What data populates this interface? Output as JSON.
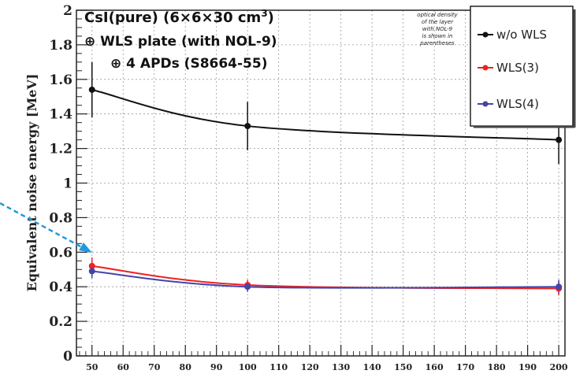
{
  "chart_data": {
    "type": "line",
    "ylabel": "Equivalent noise energy [MeV]",
    "xlabel": "",
    "ylim": [
      0,
      2
    ],
    "xlim": [
      45,
      202
    ],
    "y_ticks": [
      "0",
      "0.2",
      "0.4",
      "0.6",
      "0.8",
      "1",
      "1.2",
      "1.4",
      "1.6",
      "1.8",
      "2"
    ],
    "x_tick_values": [
      50,
      60,
      70,
      80,
      90,
      100,
      110,
      120,
      130,
      140,
      150,
      160,
      170,
      180,
      190,
      200
    ],
    "x_ticks": [
      "50",
      "60",
      "70",
      "80",
      "90",
      "100",
      "110",
      "120",
      "130",
      "140",
      "150",
      "160",
      "170",
      "180",
      "190",
      "200"
    ],
    "annotation_lines": [
      "CsI(pure) (6×6×30 cm",
      "⊕ WLS plate (with NOL-9)",
      "⊕ 4 APDs (S8664-55)"
    ],
    "annotation_superscript": "3",
    "note_lines": [
      "optical density",
      "of the layer",
      "with NOL-9",
      "is shown in",
      "parentheses"
    ],
    "series": [
      {
        "name": "w/o WLS",
        "color": "#111111",
        "x": [
          50,
          100,
          200
        ],
        "y": [
          1.54,
          1.33,
          1.25
        ],
        "err": [
          0.16,
          0.14,
          0.14
        ]
      },
      {
        "name": "WLS(3)",
        "color": "#ee2222",
        "x": [
          50,
          100,
          200
        ],
        "y": [
          0.52,
          0.41,
          0.39
        ],
        "err": [
          0.05,
          0.03,
          0.04
        ]
      },
      {
        "name": "WLS(4)",
        "color": "#4444aa",
        "x": [
          50,
          100,
          200
        ],
        "y": [
          0.49,
          0.4,
          0.4
        ],
        "err": [
          0.04,
          0.03,
          0.04
        ]
      }
    ],
    "arrow_color": "#2299dd",
    "grid": true,
    "legend_position": "top-right"
  }
}
